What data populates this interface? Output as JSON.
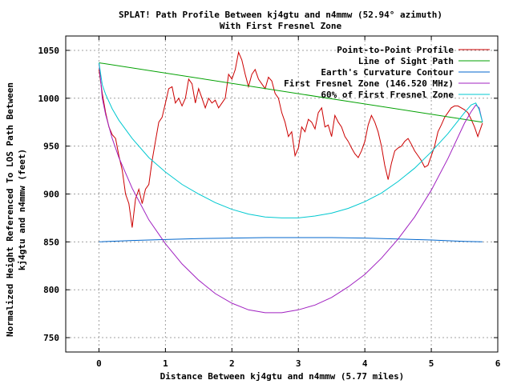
{
  "chart_data": {
    "type": "line",
    "title": "SPLAT! Path Profile Between kj4gtu and n4mmw (52.94° azimuth)",
    "subtitle": "With First Fresnel Zone",
    "xlabel": "Distance Between kj4gtu and n4mmw (5.77 miles)",
    "ylabel_line1": "Normalized Height Referenced To LOS Path Between",
    "ylabel_line2": "kj4gtu and n4mmw (feet)",
    "xlim": [
      -0.5,
      6
    ],
    "ylim": [
      735,
      1065
    ],
    "x_ticks": [
      0,
      1,
      2,
      3,
      4,
      5,
      6
    ],
    "y_ticks": [
      750,
      800,
      850,
      900,
      950,
      1000,
      1050
    ],
    "grid": true,
    "legend_position": "top-right",
    "series": [
      {
        "name": "Point-to-Point Profile",
        "color": "#cc0000",
        "x": [
          0,
          0.05,
          0.1,
          0.15,
          0.2,
          0.25,
          0.3,
          0.35,
          0.4,
          0.45,
          0.5,
          0.55,
          0.6,
          0.65,
          0.7,
          0.75,
          0.8,
          0.85,
          0.9,
          0.95,
          1.0,
          1.05,
          1.1,
          1.15,
          1.2,
          1.25,
          1.3,
          1.35,
          1.4,
          1.45,
          1.5,
          1.55,
          1.6,
          1.65,
          1.7,
          1.75,
          1.8,
          1.85,
          1.9,
          1.95,
          2.0,
          2.05,
          2.1,
          2.15,
          2.2,
          2.25,
          2.3,
          2.35,
          2.4,
          2.45,
          2.5,
          2.55,
          2.6,
          2.65,
          2.7,
          2.75,
          2.8,
          2.85,
          2.9,
          2.95,
          3.0,
          3.05,
          3.1,
          3.15,
          3.2,
          3.25,
          3.3,
          3.35,
          3.4,
          3.45,
          3.5,
          3.55,
          3.6,
          3.65,
          3.7,
          3.75,
          3.8,
          3.85,
          3.9,
          3.95,
          4.0,
          4.05,
          4.1,
          4.15,
          4.2,
          4.25,
          4.3,
          4.35,
          4.4,
          4.45,
          4.5,
          4.55,
          4.6,
          4.65,
          4.7,
          4.75,
          4.8,
          4.85,
          4.9,
          4.95,
          5.0,
          5.05,
          5.1,
          5.15,
          5.2,
          5.25,
          5.3,
          5.35,
          5.4,
          5.45,
          5.5,
          5.55,
          5.6,
          5.65,
          5.7,
          5.77
        ],
        "y": [
          1030,
          1005,
          985,
          970,
          962,
          958,
          940,
          925,
          900,
          890,
          865,
          895,
          905,
          890,
          905,
          910,
          935,
          955,
          975,
          980,
          995,
          1010,
          1012,
          995,
          1000,
          992,
          1000,
          1020,
          1015,
          995,
          1010,
          1000,
          990,
          1000,
          995,
          998,
          990,
          995,
          1000,
          1025,
          1020,
          1030,
          1048,
          1040,
          1025,
          1012,
          1025,
          1030,
          1020,
          1015,
          1010,
          1022,
          1018,
          1005,
          1000,
          985,
          975,
          960,
          965,
          940,
          948,
          970,
          965,
          978,
          975,
          968,
          985,
          990,
          970,
          972,
          960,
          982,
          975,
          970,
          960,
          955,
          948,
          942,
          938,
          945,
          955,
          972,
          982,
          975,
          965,
          950,
          930,
          915,
          932,
          945,
          948,
          950,
          955,
          958,
          952,
          945,
          940,
          935,
          928,
          930,
          940,
          950,
          965,
          972,
          980,
          985,
          990,
          992,
          992,
          990,
          988,
          985,
          978,
          970,
          960,
          974
        ]
      },
      {
        "name": "Line of Sight Path",
        "color": "#00a000",
        "x": [
          0,
          5.77
        ],
        "y": [
          1037,
          975
        ]
      },
      {
        "name": "Earth's Curvature Contour",
        "color": "#0066cc",
        "x": [
          0,
          0.5,
          1.0,
          1.5,
          2.0,
          2.5,
          3.0,
          3.5,
          4.0,
          4.5,
          5.0,
          5.5,
          5.77
        ],
        "y": [
          850,
          851.5,
          852.5,
          853.5,
          854,
          854.5,
          854.5,
          854.5,
          854,
          853,
          852,
          850.5,
          850
        ]
      },
      {
        "name": "First Fresnel Zone (146.520 MHz)",
        "color": "#a020c0",
        "x": [
          0,
          0.05,
          0.1,
          0.2,
          0.3,
          0.5,
          0.75,
          1.0,
          1.25,
          1.5,
          1.75,
          2.0,
          2.25,
          2.5,
          2.75,
          3.0,
          3.25,
          3.5,
          3.75,
          4.0,
          4.25,
          4.5,
          4.75,
          5.0,
          5.25,
          5.5,
          5.6,
          5.67,
          5.72,
          5.77
        ],
        "y": [
          1037,
          1000,
          983,
          958,
          938,
          906,
          873,
          848,
          827,
          810,
          796,
          786,
          779,
          776,
          776,
          779,
          784,
          792,
          803,
          816,
          833,
          853,
          876,
          904,
          937,
          974,
          986,
          993,
          990,
          975
        ]
      },
      {
        "name": "60% of First Fresnel Zone",
        "color": "#00c8d0",
        "x": [
          0,
          0.05,
          0.1,
          0.2,
          0.3,
          0.5,
          0.75,
          1.0,
          1.25,
          1.5,
          1.75,
          2.0,
          2.25,
          2.5,
          2.75,
          3.0,
          3.25,
          3.5,
          3.75,
          4.0,
          4.25,
          4.5,
          4.75,
          5.0,
          5.25,
          5.5,
          5.6,
          5.67,
          5.72,
          5.77
        ],
        "y": [
          1037,
          1014,
          1004,
          989,
          977,
          958,
          938,
          923,
          910,
          900,
          891,
          884,
          879,
          876,
          875,
          875,
          877,
          880,
          885,
          892,
          901,
          913,
          927,
          944,
          963,
          985,
          993,
          995,
          988,
          975
        ]
      }
    ]
  }
}
